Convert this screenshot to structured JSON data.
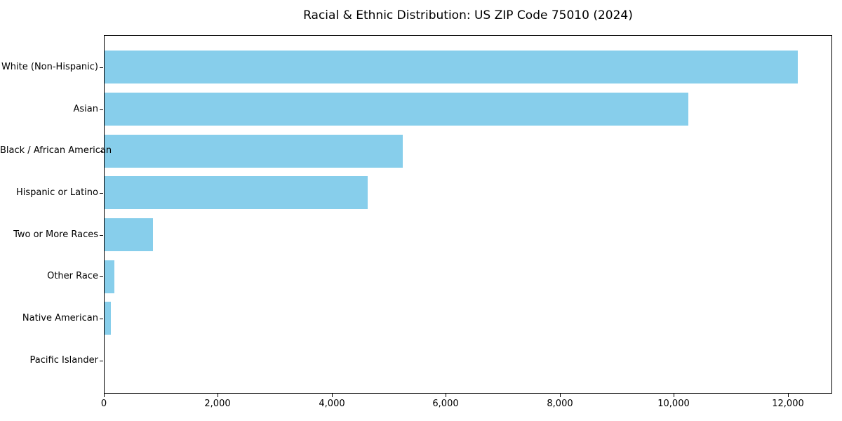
{
  "figure": {
    "background_color": "#ffffff",
    "text_color": "#000000"
  },
  "chart_data": {
    "type": "bar",
    "orientation": "horizontal",
    "title": "Racial & Ethnic Distribution: US ZIP Code 75010 (2024)",
    "xlabel": "",
    "ylabel": "",
    "grid": false,
    "legend": null,
    "bar_color": "#87CEEB",
    "xlim": [
      0,
      12780
    ],
    "categories": [
      "White (Non-Hispanic)",
      "Asian",
      "Black / African American",
      "Hispanic or Latino",
      "Two or More Races",
      "Other Race",
      "Native American",
      "Pacific Islander"
    ],
    "values": [
      12170,
      10240,
      5230,
      4620,
      850,
      170,
      110,
      0
    ],
    "x_ticks": [
      {
        "value": 0,
        "label": "0"
      },
      {
        "value": 2000,
        "label": "2,000"
      },
      {
        "value": 4000,
        "label": "4,000"
      },
      {
        "value": 6000,
        "label": "6,000"
      },
      {
        "value": 8000,
        "label": "8,000"
      },
      {
        "value": 10000,
        "label": "10,000"
      },
      {
        "value": 12000,
        "label": "12,000"
      }
    ]
  }
}
